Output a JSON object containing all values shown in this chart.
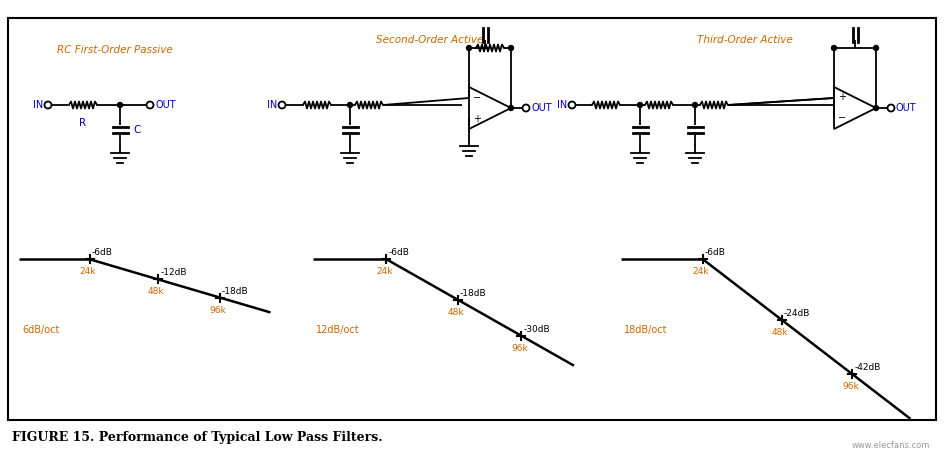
{
  "title": "FIGURE 15. Performance of Typical Low Pass Filters.",
  "circuit_titles": [
    "RC First-Order Passive",
    "Second-Order Active",
    "Third-Order Active"
  ],
  "slope_labels": [
    "6dB/oct",
    "12dB/oct",
    "18dB/oct"
  ],
  "freq_labels": [
    "24k",
    "48k",
    "96k"
  ],
  "db_labels_1": [
    "-6dB",
    "-12dB",
    "-18dB"
  ],
  "db_labels_2": [
    "-6dB",
    "-18dB",
    "-30dB"
  ],
  "db_labels_3": [
    "-6dB",
    "-24dB",
    "-42dB"
  ],
  "blue_color": "#0000bb",
  "orange_color": "#cc6600",
  "black": "#000000",
  "fig_w": 9.47,
  "fig_h": 4.53,
  "dpi": 100
}
